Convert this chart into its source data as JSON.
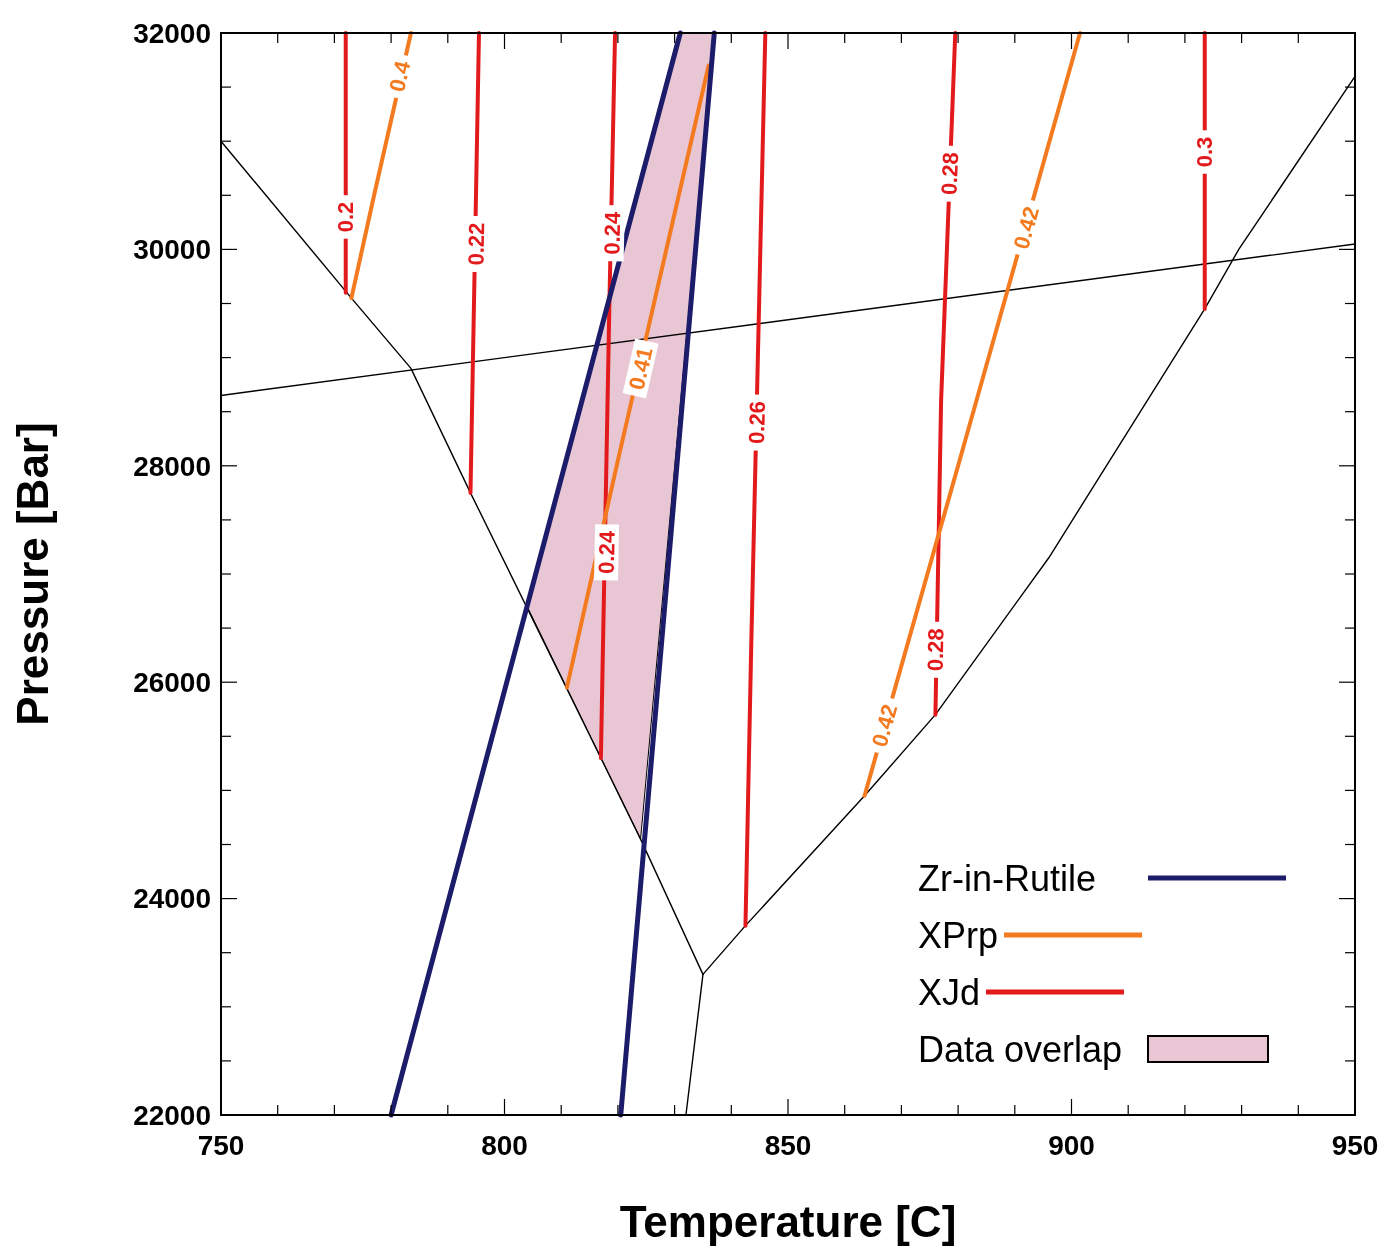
{
  "chart_data": {
    "type": "line",
    "xlabel": "Temperature [C]",
    "ylabel": "Pressure [Bar]",
    "xlim": [
      750,
      950
    ],
    "ylim": [
      22000,
      32000
    ],
    "xticks": [
      750,
      {
        "value": 760,
        "label": null
      },
      {
        "value": 770,
        "label": null
      },
      {
        "value": 780,
        "label": null
      },
      {
        "value": 790,
        "label": null
      },
      800,
      {
        "value": 810,
        "label": null
      },
      {
        "value": 820,
        "label": null
      },
      {
        "value": 830,
        "label": null
      },
      {
        "value": 840,
        "label": null
      },
      850,
      {
        "value": 860,
        "label": null
      },
      {
        "value": 870,
        "label": null
      },
      {
        "value": 880,
        "label": null
      },
      {
        "value": 890,
        "label": null
      },
      900,
      {
        "value": 910,
        "label": null
      },
      {
        "value": 920,
        "label": null
      },
      {
        "value": 930,
        "label": null
      },
      {
        "value": 940,
        "label": null
      },
      950
    ],
    "yticks": [
      22000,
      {
        "value": 22500,
        "label": null
      },
      {
        "value": 23000,
        "label": null
      },
      {
        "value": 23500,
        "label": null
      },
      24000,
      {
        "value": 24500,
        "label": null
      },
      {
        "value": 25000,
        "label": null
      },
      {
        "value": 25500,
        "label": null
      },
      26000,
      {
        "value": 26500,
        "label": null
      },
      {
        "value": 27000,
        "label": null
      },
      {
        "value": 27500,
        "label": null
      },
      28000,
      {
        "value": 28500,
        "label": null
      },
      {
        "value": 29000,
        "label": null
      },
      {
        "value": 29500,
        "label": null
      },
      30000,
      {
        "value": 30500,
        "label": null
      },
      {
        "value": 31000,
        "label": null
      },
      {
        "value": 31500,
        "label": null
      },
      32000
    ],
    "legend": "bottom right",
    "annotations": [
      {
        "text": "0.2",
        "x": 772,
        "y": 30300
      },
      {
        "text": "0.22",
        "x": 795,
        "y": 30050
      },
      {
        "text": "0.24",
        "x": 818,
        "y": 27200
      },
      {
        "text": "0.24",
        "x": 819,
        "y": 30150
      },
      {
        "text": "0.26",
        "x": 844.5,
        "y": 28400
      },
      {
        "text": "0.28",
        "x": 876,
        "y": 26300
      },
      {
        "text": "0.28",
        "x": 878.5,
        "y": 30700
      },
      {
        "text": "0.3",
        "x": 923.5,
        "y": 30900
      },
      {
        "text": "0.4",
        "x": 781.5,
        "y": 31600
      },
      {
        "text": "0.41",
        "x": 824,
        "y": 28900
      },
      {
        "text": "0.42",
        "x": 867,
        "y": 25600
      },
      {
        "text": "0.42",
        "x": 892,
        "y": 30200
      }
    ],
    "series": [
      {
        "type": "area",
        "name": "Data overlap",
        "color": "#e8c6d3",
        "x": [
          804,
          817,
          824,
          837,
          831
        ],
        "values": [
          26700,
          25300,
          24550,
          32000,
          32000
        ]
      },
      {
        "color": "#000000",
        "x": [
          750,
          773,
          783.5,
          794,
          817,
          824,
          835
        ],
        "values": [
          31000,
          29550,
          28900,
          27750,
          25300,
          24550,
          23300
        ]
      },
      {
        "color": "#000000",
        "x": [
          835,
          832
        ],
        "values": [
          23300,
          22000
        ]
      },
      {
        "color": "#000000",
        "x": [
          835,
          842.5,
          863.5,
          876,
          896,
          923.5,
          929.5,
          950
        ],
        "values": [
          23300,
          23750,
          24950,
          25700,
          27150,
          29450,
          30000,
          31600
        ]
      },
      {
        "color": "#000000",
        "x": [
          750,
          950
        ],
        "values": [
          28650,
          30050
        ]
      },
      {
        "name": "XJd",
        "color": "#e31a1c",
        "x": [
          772,
          772
        ],
        "values": [
          29600,
          32000
        ]
      },
      {
        "color": "#e31a1c",
        "x": [
          794,
          795.5
        ],
        "values": [
          27750,
          32000
        ]
      },
      {
        "color": "#e31a1c",
        "x": [
          817,
          818.5,
          819.5
        ],
        "values": [
          25300,
          29500,
          32000
        ]
      },
      {
        "color": "#e31a1c",
        "x": [
          842.5,
          843.5,
          846
        ],
        "values": [
          23750,
          26300,
          32000
        ]
      },
      {
        "color": "#e31a1c",
        "x": [
          876,
          877,
          879.5
        ],
        "values": [
          25700,
          28600,
          32000
        ]
      },
      {
        "color": "#e31a1c",
        "x": [
          923.5,
          923.5
        ],
        "values": [
          29450,
          32000
        ]
      },
      {
        "name": "XPrp",
        "color": "#f47a20",
        "x": [
          773,
          777,
          783.5
        ],
        "values": [
          29550,
          30500,
          32000
        ]
      },
      {
        "color": "#f47a20",
        "x": [
          811,
          820,
          836
        ],
        "values": [
          25950,
          28050,
          31700
        ]
      },
      {
        "color": "#f47a20",
        "x": [
          863.5,
          880,
          901.5
        ],
        "values": [
          24950,
          28000,
          32000
        ]
      },
      {
        "name": "Zr-in-Rutile",
        "color": "#1c1c6b",
        "x": [
          780,
          831,
          833,
          837,
          820.5
        ],
        "values": [
          22000,
          32000,
          null,
          32000,
          22000
        ]
      }
    ]
  }
}
